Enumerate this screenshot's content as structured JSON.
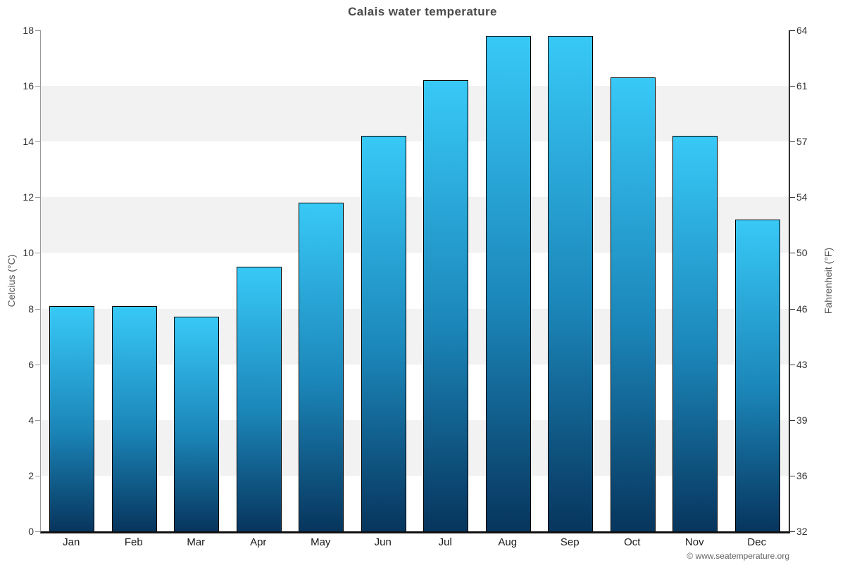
{
  "title": "Calais water temperature",
  "footer": "© www.seatemperature.org",
  "axes": {
    "left_title": "Celcius (°C)",
    "right_title": "Fahrenheit (°F)"
  },
  "chart_data": {
    "type": "bar",
    "title": "Calais water temperature",
    "categories": [
      "Jan",
      "Feb",
      "Mar",
      "Apr",
      "May",
      "Jun",
      "Jul",
      "Aug",
      "Sep",
      "Oct",
      "Nov",
      "Dec"
    ],
    "values": [
      8.1,
      8.1,
      7.7,
      9.5,
      11.8,
      14.2,
      16.2,
      17.8,
      17.8,
      16.3,
      14.2,
      11.2
    ],
    "series_unit": "°C",
    "ylabel": "Celcius (°C)",
    "ylabel_right": "Fahrenheit (°F)",
    "ylim": [
      0,
      18
    ],
    "celsius_ticks": [
      0,
      2,
      4,
      6,
      8,
      10,
      12,
      14,
      16,
      18
    ],
    "fahrenheit_ticks": [
      "32",
      "36",
      "39",
      "43",
      "46",
      "50",
      "54",
      "57",
      "61",
      "64"
    ],
    "grid": "alternating 2°C horizontal bands",
    "legend": "none"
  },
  "colors": {
    "bar_top": "#38c9f7",
    "bar_mid": "#1b85b8",
    "bar_bottom": "#07355d",
    "bar_border": "#000000",
    "band_gray": "#f2f2f2",
    "band_white": "#ffffff",
    "title_color": "#4a4a4a",
    "tick_label": "#333333",
    "left_axis_line": "#999999",
    "right_axis_line": "#333333",
    "baseline": "#111111",
    "footer_color": "#666666"
  }
}
